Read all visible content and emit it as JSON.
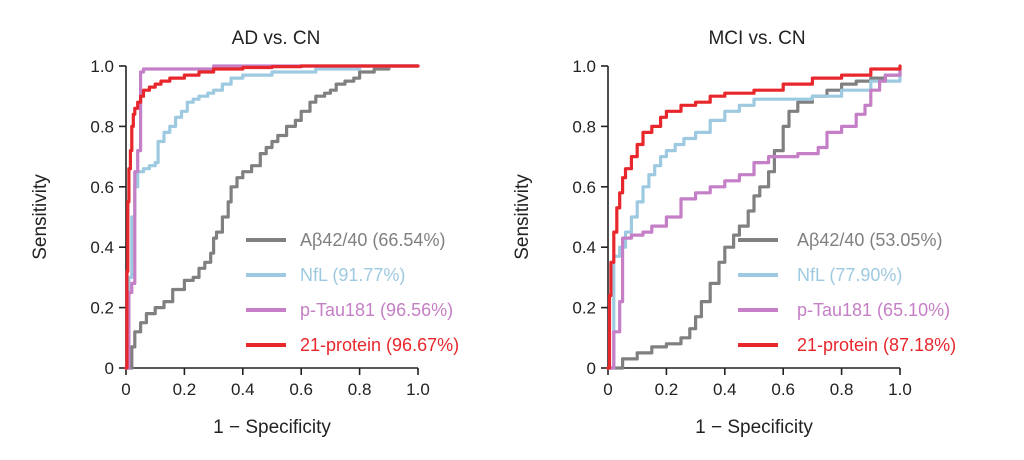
{
  "chart_data": [
    {
      "type": "line",
      "title": "AD vs. CN",
      "xlabel": "1 − Specificity",
      "ylabel": "Sensitivity",
      "xlim": [
        0,
        1
      ],
      "ylim": [
        0,
        1
      ],
      "xticks": [
        "0",
        "0.2",
        "0.4",
        "0.6",
        "0.8",
        "1.0"
      ],
      "yticks": [
        "0",
        "0.2",
        "0.4",
        "0.6",
        "0.8",
        "1.0"
      ],
      "legend_position": "bottom-right",
      "series": [
        {
          "name": "Aβ42/40 (66.54%)",
          "color": "#808080",
          "x": [
            0,
            0.02,
            0.03,
            0.05,
            0.07,
            0.1,
            0.13,
            0.16,
            0.2,
            0.23,
            0.25,
            0.27,
            0.29,
            0.3,
            0.31,
            0.33,
            0.35,
            0.36,
            0.38,
            0.4,
            0.43,
            0.45,
            0.46,
            0.48,
            0.5,
            0.52,
            0.55,
            0.58,
            0.6,
            0.63,
            0.65,
            0.68,
            0.7,
            0.72,
            0.75,
            0.78,
            0.8,
            0.85,
            0.9,
            1.0
          ],
          "y": [
            0,
            0.07,
            0.12,
            0.15,
            0.18,
            0.2,
            0.22,
            0.26,
            0.29,
            0.3,
            0.33,
            0.35,
            0.38,
            0.43,
            0.45,
            0.5,
            0.55,
            0.6,
            0.63,
            0.65,
            0.67,
            0.67,
            0.71,
            0.73,
            0.75,
            0.77,
            0.8,
            0.82,
            0.85,
            0.88,
            0.9,
            0.91,
            0.92,
            0.94,
            0.95,
            0.96,
            0.98,
            0.99,
            1.0,
            1.0
          ]
        },
        {
          "name": "NfL (91.77%)",
          "color": "#9ecae1",
          "x": [
            0,
            0.01,
            0.02,
            0.03,
            0.04,
            0.06,
            0.08,
            0.1,
            0.11,
            0.13,
            0.15,
            0.17,
            0.19,
            0.21,
            0.23,
            0.25,
            0.28,
            0.3,
            0.33,
            0.36,
            0.4,
            0.45,
            0.5,
            0.55,
            0.6,
            0.65,
            0.7,
            0.8,
            1.0
          ],
          "y": [
            0,
            0.3,
            0.5,
            0.6,
            0.65,
            0.66,
            0.67,
            0.68,
            0.75,
            0.78,
            0.8,
            0.83,
            0.85,
            0.88,
            0.89,
            0.9,
            0.91,
            0.92,
            0.94,
            0.96,
            0.97,
            0.97,
            0.98,
            0.98,
            0.98,
            0.99,
            0.99,
            1.0,
            1.0
          ]
        },
        {
          "name": "p-Tau181 (96.56%)",
          "color": "#c57fc6",
          "x": [
            0,
            0.01,
            0.02,
            0.03,
            0.04,
            0.05,
            0.06,
            0.1,
            0.2,
            0.3,
            0.5,
            1.0
          ],
          "y": [
            0,
            0.25,
            0.28,
            0.65,
            0.72,
            0.98,
            0.99,
            0.99,
            0.99,
            1.0,
            1.0,
            1.0
          ]
        },
        {
          "name": "21-protein (96.67%)",
          "color": "#e8272c",
          "x": [
            0,
            0.003,
            0.006,
            0.01,
            0.015,
            0.02,
            0.025,
            0.03,
            0.04,
            0.05,
            0.06,
            0.08,
            0.1,
            0.12,
            0.15,
            0.2,
            0.25,
            0.3,
            0.4,
            0.5,
            0.6,
            1.0
          ],
          "y": [
            0,
            0.32,
            0.55,
            0.66,
            0.72,
            0.8,
            0.84,
            0.86,
            0.88,
            0.9,
            0.92,
            0.93,
            0.94,
            0.95,
            0.96,
            0.97,
            0.98,
            0.99,
            0.995,
            0.998,
            1.0,
            1.0
          ]
        }
      ]
    },
    {
      "type": "line",
      "title": "MCI vs. CN",
      "xlabel": "1 − Specificity",
      "ylabel": "Sensitivity",
      "xlim": [
        0,
        1
      ],
      "ylim": [
        0,
        1
      ],
      "xticks": [
        "0",
        "0.2",
        "0.4",
        "0.6",
        "0.8",
        "1.0"
      ],
      "yticks": [
        "0",
        "0.2",
        "0.4",
        "0.6",
        "0.8",
        "1.0"
      ],
      "legend_position": "bottom-right",
      "series": [
        {
          "name": "Aβ42/40 (53.05%)",
          "color": "#808080",
          "x": [
            0,
            0.05,
            0.1,
            0.15,
            0.2,
            0.25,
            0.28,
            0.3,
            0.32,
            0.35,
            0.38,
            0.4,
            0.43,
            0.45,
            0.48,
            0.5,
            0.52,
            0.55,
            0.57,
            0.6,
            0.62,
            0.65,
            0.7,
            0.75,
            0.8,
            0.85,
            0.9,
            0.95,
            1.0
          ],
          "y": [
            0,
            0.03,
            0.05,
            0.07,
            0.08,
            0.1,
            0.13,
            0.17,
            0.22,
            0.28,
            0.35,
            0.4,
            0.44,
            0.47,
            0.52,
            0.57,
            0.6,
            0.65,
            0.72,
            0.8,
            0.85,
            0.88,
            0.9,
            0.92,
            0.94,
            0.95,
            0.96,
            0.97,
            0.98
          ]
        },
        {
          "name": "NfL (77.90%)",
          "color": "#9ecae1",
          "x": [
            0,
            0.02,
            0.04,
            0.06,
            0.08,
            0.1,
            0.12,
            0.14,
            0.16,
            0.18,
            0.2,
            0.23,
            0.26,
            0.3,
            0.35,
            0.4,
            0.45,
            0.5,
            0.6,
            0.7,
            0.8,
            0.9,
            1.0
          ],
          "y": [
            0,
            0.37,
            0.4,
            0.45,
            0.5,
            0.55,
            0.6,
            0.64,
            0.67,
            0.7,
            0.72,
            0.74,
            0.76,
            0.78,
            0.82,
            0.85,
            0.87,
            0.89,
            0.89,
            0.9,
            0.92,
            0.95,
            0.97
          ]
        },
        {
          "name": "p-Tau181 (65.10%)",
          "color": "#c57fc6",
          "x": [
            0,
            0.02,
            0.04,
            0.05,
            0.08,
            0.12,
            0.15,
            0.2,
            0.25,
            0.3,
            0.35,
            0.4,
            0.45,
            0.5,
            0.55,
            0.6,
            0.65,
            0.7,
            0.72,
            0.75,
            0.8,
            0.85,
            0.88,
            0.9,
            0.93,
            0.95,
            1.0
          ],
          "y": [
            0,
            0.12,
            0.22,
            0.43,
            0.44,
            0.45,
            0.47,
            0.5,
            0.56,
            0.58,
            0.6,
            0.62,
            0.64,
            0.68,
            0.7,
            0.7,
            0.71,
            0.71,
            0.73,
            0.78,
            0.8,
            0.84,
            0.87,
            0.92,
            0.95,
            0.97,
            0.99
          ]
        },
        {
          "name": "21-protein (87.18%)",
          "color": "#e8272c",
          "x": [
            0,
            0.005,
            0.01,
            0.02,
            0.03,
            0.04,
            0.05,
            0.06,
            0.08,
            0.1,
            0.12,
            0.15,
            0.18,
            0.2,
            0.25,
            0.3,
            0.35,
            0.4,
            0.5,
            0.6,
            0.7,
            0.8,
            0.9,
            1.0
          ],
          "y": [
            0,
            0.24,
            0.35,
            0.45,
            0.53,
            0.58,
            0.63,
            0.66,
            0.7,
            0.74,
            0.78,
            0.8,
            0.83,
            0.85,
            0.87,
            0.88,
            0.9,
            0.91,
            0.92,
            0.94,
            0.96,
            0.97,
            0.99,
            1.0
          ]
        }
      ]
    }
  ]
}
